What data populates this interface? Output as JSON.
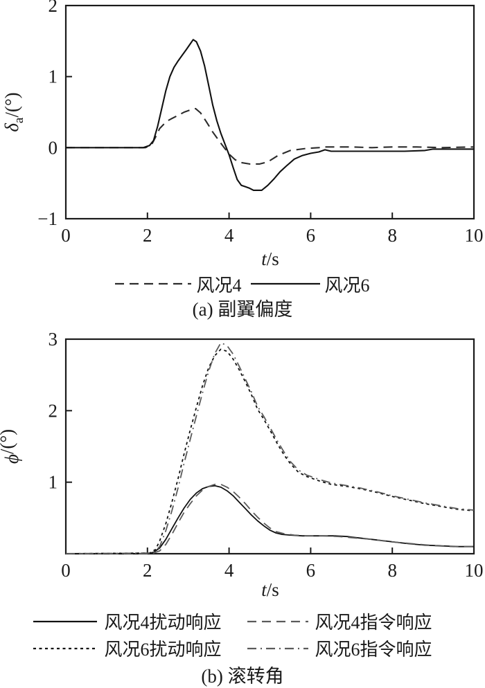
{
  "figure": {
    "background": "#ffffff",
    "ink_color": "#1a1a1a",
    "gray_color": "#5a5a5a"
  },
  "chart_data": [
    {
      "type": "line",
      "title": "(a) 副翼偏度",
      "xlabel": {
        "italic": "t",
        "rest": "/s"
      },
      "ylabel": {
        "symbol": "δ",
        "subscript": "a",
        "rest": "/(°)"
      },
      "xlim": [
        0,
        10
      ],
      "ylim": [
        -1,
        2
      ],
      "xticks": [
        0,
        2,
        4,
        6,
        8,
        10
      ],
      "yticks": [
        -1,
        0,
        1,
        2
      ],
      "grid": false,
      "legend_position": "below",
      "series": [
        {
          "name": "风况4",
          "style": "dashed",
          "color": "#2b2b2b",
          "points": [
            [
              0,
              0
            ],
            [
              1.95,
              0
            ],
            [
              2.1,
              0.04
            ],
            [
              2.2,
              0.15
            ],
            [
              2.3,
              0.27
            ],
            [
              2.4,
              0.33
            ],
            [
              2.5,
              0.38
            ],
            [
              2.6,
              0.41
            ],
            [
              2.7,
              0.44
            ],
            [
              2.8,
              0.47
            ],
            [
              2.9,
              0.5
            ],
            [
              3.0,
              0.52
            ],
            [
              3.1,
              0.54
            ],
            [
              3.18,
              0.55
            ],
            [
              3.3,
              0.49
            ],
            [
              3.45,
              0.36
            ],
            [
              3.6,
              0.22
            ],
            [
              3.75,
              0.1
            ],
            [
              3.88,
              0.0
            ],
            [
              4.0,
              -0.09
            ],
            [
              4.15,
              -0.17
            ],
            [
              4.3,
              -0.21
            ],
            [
              4.5,
              -0.23
            ],
            [
              4.75,
              -0.23
            ],
            [
              4.95,
              -0.2
            ],
            [
              5.2,
              -0.11
            ],
            [
              5.5,
              -0.04
            ],
            [
              5.9,
              -0.01
            ],
            [
              6.2,
              0.0
            ],
            [
              6.35,
              0.01
            ],
            [
              6.6,
              0.01
            ],
            [
              7.0,
              0.01
            ],
            [
              7.5,
              0.0
            ],
            [
              8.0,
              0.01
            ],
            [
              8.6,
              0.01
            ],
            [
              9.2,
              0.0
            ],
            [
              10,
              0.01
            ]
          ]
        },
        {
          "name": "风况6",
          "style": "solid",
          "color": "#111111",
          "points": [
            [
              0,
              0
            ],
            [
              1.9,
              0
            ],
            [
              2.05,
              0.03
            ],
            [
              2.15,
              0.1
            ],
            [
              2.25,
              0.3
            ],
            [
              2.35,
              0.55
            ],
            [
              2.45,
              0.8
            ],
            [
              2.55,
              1.0
            ],
            [
              2.65,
              1.13
            ],
            [
              2.75,
              1.22
            ],
            [
              2.85,
              1.3
            ],
            [
              2.95,
              1.38
            ],
            [
              3.05,
              1.46
            ],
            [
              3.12,
              1.52
            ],
            [
              3.2,
              1.49
            ],
            [
              3.3,
              1.36
            ],
            [
              3.4,
              1.15
            ],
            [
              3.5,
              0.88
            ],
            [
              3.6,
              0.6
            ],
            [
              3.7,
              0.38
            ],
            [
              3.8,
              0.2
            ],
            [
              3.9,
              0.05
            ],
            [
              4.0,
              -0.1
            ],
            [
              4.1,
              -0.28
            ],
            [
              4.2,
              -0.45
            ],
            [
              4.3,
              -0.53
            ],
            [
              4.4,
              -0.55
            ],
            [
              4.5,
              -0.57
            ],
            [
              4.6,
              -0.6
            ],
            [
              4.8,
              -0.6
            ],
            [
              4.95,
              -0.53
            ],
            [
              5.1,
              -0.44
            ],
            [
              5.25,
              -0.34
            ],
            [
              5.4,
              -0.26
            ],
            [
              5.6,
              -0.16
            ],
            [
              5.8,
              -0.11
            ],
            [
              6.0,
              -0.08
            ],
            [
              6.2,
              -0.06
            ],
            [
              6.35,
              -0.03
            ],
            [
              6.5,
              -0.05
            ],
            [
              7.0,
              -0.05
            ],
            [
              7.6,
              -0.05
            ],
            [
              8.3,
              -0.05
            ],
            [
              8.8,
              -0.04
            ],
            [
              9.0,
              -0.02
            ],
            [
              10,
              -0.02
            ]
          ]
        }
      ]
    },
    {
      "type": "line",
      "title": "(b) 滚转角",
      "xlabel": {
        "italic": "t",
        "rest": "/s"
      },
      "ylabel": {
        "symbol": "ϕ",
        "subscript": "",
        "rest": "/(°)"
      },
      "xlim": [
        0,
        10
      ],
      "ylim": [
        0,
        3
      ],
      "xticks": [
        0,
        2,
        4,
        6,
        8,
        10
      ],
      "yticks": [
        1,
        2,
        3
      ],
      "grid": false,
      "legend_position": "below",
      "series": [
        {
          "name": "风况4扰动响应",
          "style": "solid",
          "color": "#111111",
          "points": [
            [
              0,
              0
            ],
            [
              2.0,
              0.0
            ],
            [
              2.15,
              0.02
            ],
            [
              2.3,
              0.08
            ],
            [
              2.45,
              0.2
            ],
            [
              2.6,
              0.35
            ],
            [
              2.75,
              0.5
            ],
            [
              2.9,
              0.64
            ],
            [
              3.05,
              0.76
            ],
            [
              3.2,
              0.85
            ],
            [
              3.35,
              0.91
            ],
            [
              3.5,
              0.94
            ],
            [
              3.65,
              0.95
            ],
            [
              3.8,
              0.93
            ],
            [
              3.95,
              0.88
            ],
            [
              4.1,
              0.81
            ],
            [
              4.25,
              0.72
            ],
            [
              4.4,
              0.63
            ],
            [
              4.55,
              0.54
            ],
            [
              4.7,
              0.46
            ],
            [
              4.85,
              0.39
            ],
            [
              5.0,
              0.33
            ],
            [
              5.15,
              0.29
            ],
            [
              5.3,
              0.27
            ],
            [
              5.5,
              0.26
            ],
            [
              5.8,
              0.25
            ],
            [
              6.2,
              0.25
            ],
            [
              6.6,
              0.25
            ],
            [
              6.9,
              0.24
            ],
            [
              7.2,
              0.22
            ],
            [
              7.5,
              0.2
            ],
            [
              7.8,
              0.18
            ],
            [
              8.1,
              0.16
            ],
            [
              8.4,
              0.14
            ],
            [
              8.8,
              0.12
            ],
            [
              9.2,
              0.11
            ],
            [
              9.6,
              0.1
            ],
            [
              10,
              0.1
            ]
          ]
        },
        {
          "name": "风况4指令响应",
          "style": "dashed",
          "color": "#5a5a5a",
          "points": [
            [
              0,
              0
            ],
            [
              2.1,
              0.0
            ],
            [
              2.3,
              0.04
            ],
            [
              2.45,
              0.13
            ],
            [
              2.6,
              0.27
            ],
            [
              2.75,
              0.43
            ],
            [
              2.9,
              0.58
            ],
            [
              3.05,
              0.7
            ],
            [
              3.2,
              0.81
            ],
            [
              3.35,
              0.89
            ],
            [
              3.5,
              0.94
            ],
            [
              3.65,
              0.97
            ],
            [
              3.8,
              0.97
            ],
            [
              3.95,
              0.93
            ],
            [
              4.1,
              0.87
            ],
            [
              4.25,
              0.79
            ],
            [
              4.4,
              0.7
            ],
            [
              4.55,
              0.6
            ],
            [
              4.7,
              0.51
            ],
            [
              4.85,
              0.43
            ],
            [
              5.0,
              0.36
            ],
            [
              5.15,
              0.31
            ],
            [
              5.35,
              0.28
            ],
            [
              5.6,
              0.26
            ],
            [
              5.9,
              0.25
            ],
            [
              6.3,
              0.25
            ],
            [
              6.7,
              0.24
            ],
            [
              7.1,
              0.22
            ],
            [
              7.5,
              0.2
            ],
            [
              7.9,
              0.17
            ],
            [
              8.3,
              0.15
            ],
            [
              8.7,
              0.13
            ],
            [
              9.1,
              0.11
            ],
            [
              9.5,
              0.1
            ],
            [
              10,
              0.1
            ]
          ]
        },
        {
          "name": "风况6扰动响应",
          "style": "dotted",
          "color": "#111111",
          "points": [
            [
              0,
              0
            ],
            [
              2.05,
              0.01
            ],
            [
              2.2,
              0.06
            ],
            [
              2.3,
              0.18
            ],
            [
              2.45,
              0.42
            ],
            [
              2.6,
              0.72
            ],
            [
              2.75,
              1.05
            ],
            [
              2.9,
              1.4
            ],
            [
              3.05,
              1.73
            ],
            [
              3.2,
              2.05
            ],
            [
              3.35,
              2.35
            ],
            [
              3.5,
              2.6
            ],
            [
              3.65,
              2.77
            ],
            [
              3.8,
              2.86
            ],
            [
              3.95,
              2.83
            ],
            [
              4.1,
              2.72
            ],
            [
              4.25,
              2.57
            ],
            [
              4.4,
              2.4
            ],
            [
              4.55,
              2.22
            ],
            [
              4.7,
              2.02
            ],
            [
              4.85,
              1.88
            ],
            [
              5.0,
              1.73
            ],
            [
              5.2,
              1.52
            ],
            [
              5.35,
              1.38
            ],
            [
              5.5,
              1.26
            ],
            [
              5.7,
              1.14
            ],
            [
              5.9,
              1.08
            ],
            [
              6.2,
              1.02
            ],
            [
              6.5,
              0.97
            ],
            [
              6.9,
              0.94
            ],
            [
              7.2,
              0.91
            ],
            [
              7.6,
              0.86
            ],
            [
              8.0,
              0.8
            ],
            [
              8.4,
              0.75
            ],
            [
              8.8,
              0.7
            ],
            [
              9.2,
              0.66
            ],
            [
              9.6,
              0.62
            ],
            [
              10,
              0.6
            ]
          ]
        },
        {
          "name": "风况6指令响应",
          "style": "dashdot",
          "color": "#5a5a5a",
          "points": [
            [
              0,
              0
            ],
            [
              2.15,
              0.01
            ],
            [
              2.3,
              0.1
            ],
            [
              2.45,
              0.32
            ],
            [
              2.6,
              0.6
            ],
            [
              2.75,
              0.92
            ],
            [
              2.9,
              1.27
            ],
            [
              3.05,
              1.6
            ],
            [
              3.2,
              1.93
            ],
            [
              3.35,
              2.25
            ],
            [
              3.5,
              2.55
            ],
            [
              3.65,
              2.8
            ],
            [
              3.8,
              2.95
            ],
            [
              3.95,
              2.91
            ],
            [
              4.1,
              2.79
            ],
            [
              4.25,
              2.62
            ],
            [
              4.4,
              2.44
            ],
            [
              4.55,
              2.26
            ],
            [
              4.7,
              2.06
            ],
            [
              4.85,
              1.92
            ],
            [
              5.0,
              1.77
            ],
            [
              5.2,
              1.56
            ],
            [
              5.35,
              1.42
            ],
            [
              5.5,
              1.29
            ],
            [
              5.7,
              1.17
            ],
            [
              5.9,
              1.1
            ],
            [
              6.2,
              1.04
            ],
            [
              6.5,
              0.99
            ],
            [
              6.9,
              0.95
            ],
            [
              7.2,
              0.92
            ],
            [
              7.6,
              0.87
            ],
            [
              8.0,
              0.81
            ],
            [
              8.4,
              0.76
            ],
            [
              8.8,
              0.71
            ],
            [
              9.2,
              0.67
            ],
            [
              9.6,
              0.63
            ],
            [
              10,
              0.61
            ]
          ]
        }
      ]
    }
  ]
}
